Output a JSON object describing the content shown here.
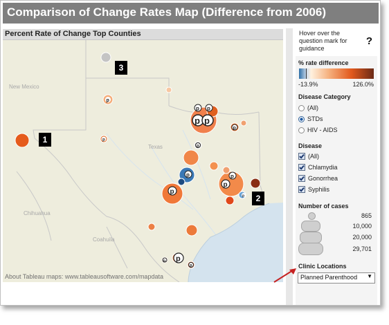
{
  "title": "Comparison of Change Rates Map (Difference from 2006)",
  "map": {
    "header": "Percent Rate of Change Top Counties",
    "labels": {
      "new_mexico": "New Mexico",
      "texas": "Texas",
      "chihuahua": "Chihuahua",
      "coahuila": "Coahuila"
    },
    "attribution": "About Tableau maps: www.tableausoftware.com/mapdata",
    "callouts": [
      "1",
      "2",
      "3"
    ]
  },
  "guide": {
    "text": "Hover over the question mark for guidance",
    "icon": "?"
  },
  "rate_legend": {
    "title": "% rate difference",
    "min": "-13.9%",
    "max": "126.0%",
    "colors": {
      "low": "#2f6fa7",
      "mid": "#fff1df",
      "high": "#e2591d",
      "max": "#6a2a16"
    }
  },
  "disease_category": {
    "title": "Disease Category",
    "options": [
      "(All)",
      "STDs",
      "HIV - AIDS"
    ],
    "selected": "STDs"
  },
  "disease": {
    "title": "Disease",
    "options": [
      "(All)",
      "Chlamydia",
      "Gonorrhea",
      "Syphilis"
    ]
  },
  "cases": {
    "title": "Number of cases",
    "values": [
      "865",
      "10,000",
      "20,000",
      "29,701"
    ]
  },
  "clinic": {
    "title": "Clinic Locations",
    "selected": "Planned Parenthood"
  },
  "icons": [
    "planned-parenthood-marker-icon",
    "question-mark-icon",
    "dropdown-arrow-icon",
    "red-pointer-arrow"
  ]
}
